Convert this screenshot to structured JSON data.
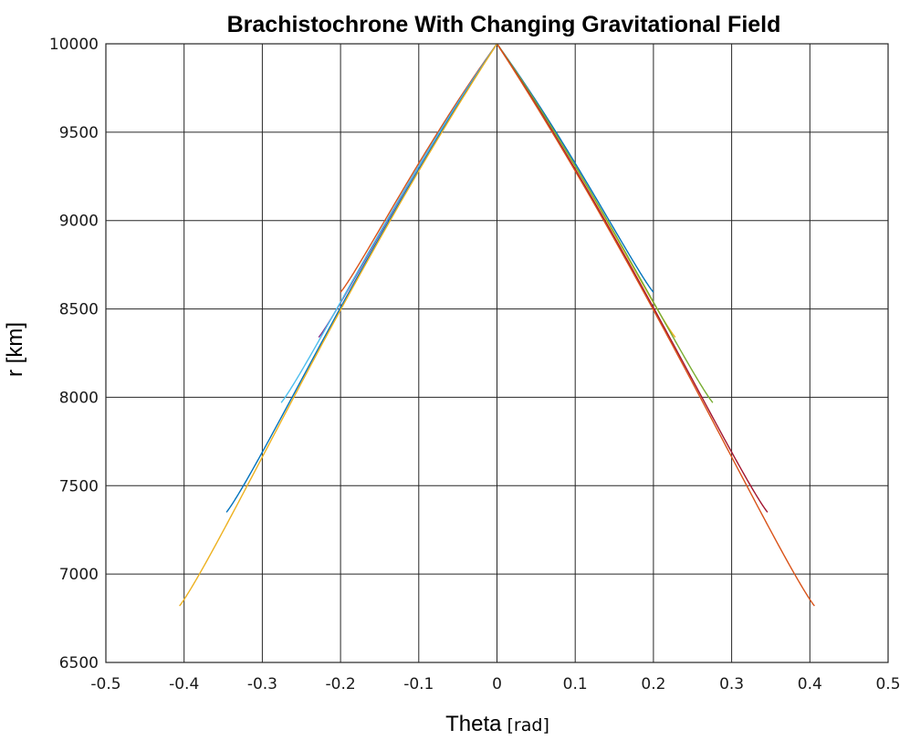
{
  "chart_data": {
    "type": "line",
    "title": "Brachistochrone With Changing Gravitational Field",
    "xlabel": "Theta",
    "xlabel_unit": "[rad]",
    "ylabel": "r [km]",
    "xlim": [
      -0.5,
      0.5
    ],
    "ylim": [
      6500,
      10000
    ],
    "x_ticks": [
      "-0.5",
      "-0.4",
      "-0.3",
      "-0.2",
      "-0.1",
      "0",
      "0.1",
      "0.2",
      "0.3",
      "0.4",
      "0.5"
    ],
    "y_ticks": [
      "6500",
      "7000",
      "7500",
      "8000",
      "8500",
      "9000",
      "9500",
      "10000"
    ],
    "grid": true,
    "series": [
      {
        "color": "#0072bd",
        "end_x": 0.2,
        "end_r": 8595
      },
      {
        "color": "#edb120",
        "end_x": 0.228,
        "end_r": 8340
      },
      {
        "color": "#77ac30",
        "end_x": 0.276,
        "end_r": 7970
      },
      {
        "color": "#a2142f",
        "end_x": 0.346,
        "end_r": 7350
      },
      {
        "color": "#d95319",
        "end_x": 0.406,
        "end_r": 6820
      },
      {
        "color": "#d95319",
        "end_x": -0.2,
        "end_r": 8595
      },
      {
        "color": "#7e2f8e",
        "end_x": -0.228,
        "end_r": 8340
      },
      {
        "color": "#4dbeee",
        "end_x": -0.276,
        "end_r": 7970
      },
      {
        "color": "#0072bd",
        "end_x": -0.346,
        "end_r": 7350
      },
      {
        "color": "#edb120",
        "end_x": -0.406,
        "end_r": 6820
      }
    ]
  }
}
